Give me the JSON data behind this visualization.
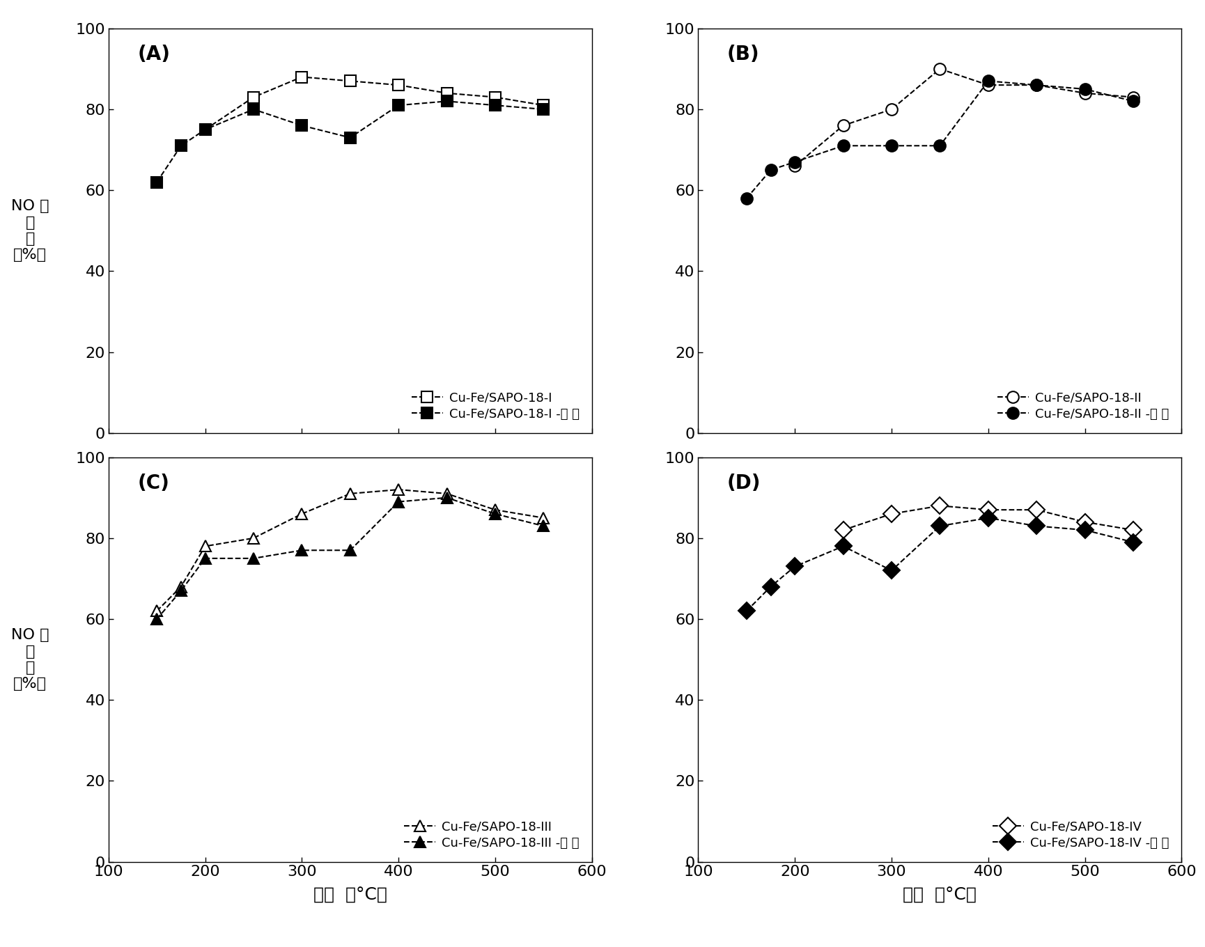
{
  "x_temps": [
    150,
    175,
    200,
    250,
    300,
    350,
    400,
    450,
    500,
    550
  ],
  "panels": [
    {
      "label": "(A)",
      "series": [
        {
          "name": "Cu-Fe/SAPO-18-I",
          "y": [
            null,
            null,
            75,
            83,
            88,
            87,
            86,
            84,
            83,
            81
          ],
          "marker": "s",
          "filled": false
        },
        {
          "name": "Cu-Fe/SAPO-18-I -丙 稝",
          "y": [
            62,
            71,
            75,
            80,
            76,
            73,
            81,
            82,
            81,
            80
          ],
          "marker": "s",
          "filled": true
        }
      ]
    },
    {
      "label": "(B)",
      "series": [
        {
          "name": "Cu-Fe/SAPO-18-II",
          "y": [
            null,
            null,
            66,
            76,
            80,
            90,
            86,
            86,
            84,
            83
          ],
          "marker": "o",
          "filled": false
        },
        {
          "name": "Cu-Fe/SAPO-18-II -丙 稝",
          "y": [
            58,
            65,
            67,
            71,
            71,
            71,
            87,
            86,
            85,
            82
          ],
          "marker": "o",
          "filled": true
        }
      ]
    },
    {
      "label": "(C)",
      "series": [
        {
          "name": "Cu-Fe/SAPO-18-III",
          "y": [
            62,
            68,
            78,
            80,
            86,
            91,
            92,
            91,
            87,
            85
          ],
          "marker": "^",
          "filled": false
        },
        {
          "name": "Cu-Fe/SAPO-18-III -丙 稝",
          "y": [
            60,
            67,
            75,
            75,
            77,
            77,
            89,
            90,
            86,
            83
          ],
          "marker": "^",
          "filled": true
        }
      ]
    },
    {
      "label": "(D)",
      "series": [
        {
          "name": "Cu-Fe/SAPO-18-IV",
          "y": [
            null,
            null,
            null,
            82,
            86,
            88,
            87,
            87,
            84,
            82
          ],
          "marker": "D",
          "filled": false
        },
        {
          "name": "Cu-Fe/SAPO-18-IV -丙 稝",
          "y": [
            62,
            68,
            73,
            78,
            72,
            83,
            85,
            83,
            82,
            79
          ],
          "marker": "D",
          "filled": true
        }
      ]
    }
  ],
  "xlabel": "温度  （°C）",
  "ylabel_chars": "NO 转\n化\n率\n（％）",
  "xlim": [
    100,
    600
  ],
  "ylim": [
    0,
    100
  ],
  "xticks": [
    100,
    200,
    300,
    400,
    500,
    600
  ],
  "yticks": [
    0,
    20,
    40,
    60,
    80,
    100
  ],
  "background_color": "#ffffff",
  "line_style": "--",
  "marker_size": 12,
  "linewidth": 1.5
}
